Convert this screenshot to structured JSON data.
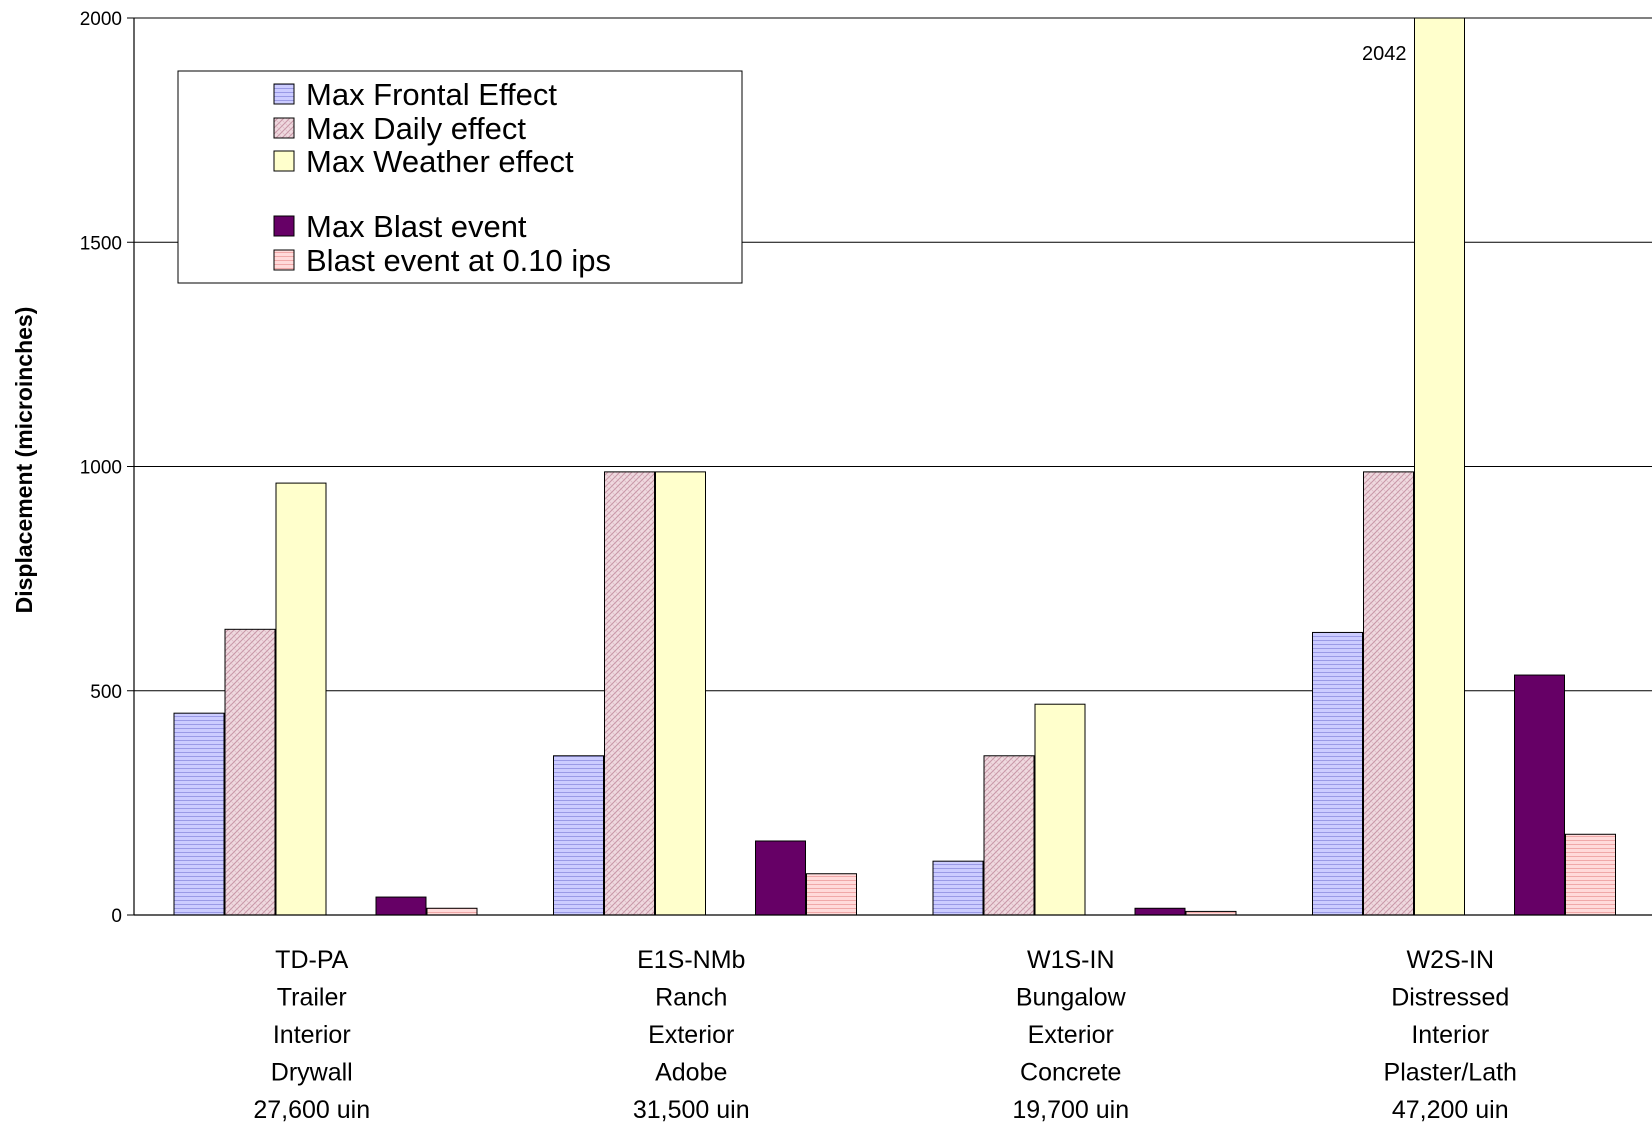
{
  "chart_data": {
    "type": "bar",
    "title": "",
    "xlabel": "",
    "ylabel": "Displacement (microinches)",
    "ylim": [
      0,
      2000
    ],
    "yticks": [
      0,
      500,
      1000,
      1500,
      2000
    ],
    "grid": true,
    "legend_position": "top-left",
    "categories": [
      [
        "TD-PA",
        "Trailer",
        "Interior",
        "Drywall",
        "27,600 uin"
      ],
      [
        "E1S-NMb",
        "Ranch",
        "Exterior",
        "Adobe",
        "31,500 uin"
      ],
      [
        "W1S-IN",
        "Bungalow",
        "Exterior",
        "Concrete",
        "19,700 uin"
      ],
      [
        "W2S-IN",
        "Distressed",
        "Interior",
        "Plaster/Lath",
        "47,200 uin"
      ]
    ],
    "series": [
      {
        "name": "Max Frontal Effect",
        "color": "#ccccff",
        "pattern": "horizontal-lines",
        "values": [
          450,
          355,
          120,
          630
        ]
      },
      {
        "name": "Max Daily effect",
        "color": "#e8c8d2",
        "pattern": "diagonal-hatch",
        "values": [
          637,
          988,
          355,
          988
        ]
      },
      {
        "name": "Max Weather effect",
        "color": "#ffffcc",
        "pattern": "solid",
        "values": [
          963,
          988,
          470,
          2042
        ]
      },
      {
        "name": "Max Blast event",
        "color": "#660066",
        "pattern": "solid",
        "values": [
          40,
          165,
          15,
          535
        ]
      },
      {
        "name": "Blast event at 0.10 ips",
        "color": "#ffcccc",
        "pattern": "horizontal-lines",
        "values": [
          15,
          92,
          8,
          180
        ]
      }
    ],
    "annotations": [
      {
        "text": "2042",
        "series": "Max Weather effect",
        "category": 3
      }
    ]
  }
}
